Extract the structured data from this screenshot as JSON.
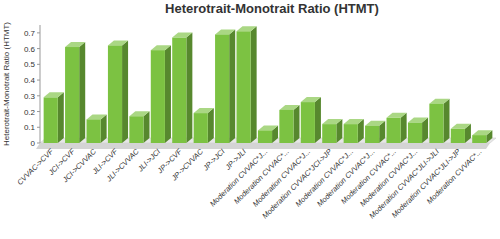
{
  "chart_data": {
    "type": "bar",
    "title": "Heterotrait-Monotrait Ratio (HTMT)",
    "y_label": "Heterotrait-Monotrait Ratio (HTMT)",
    "categories": [
      "CVVAC->CVF",
      "JCI->CVF",
      "JCI->CVVAC",
      "JLI->CVF",
      "JLI->CVVAC",
      "JLI->JCI",
      "JP->CVF",
      "JP->CVVAC",
      "JP->JCI",
      "JP->JLI",
      "Moderation CVVAC*J...",
      "Moderation CVVAC*...",
      "Moderation CVVAC*J...",
      "Moderation CVVAC*JCI->JP",
      "Moderation CVVAC*J...",
      "Moderation CVVAC*J...",
      "Moderation CVVAC*...",
      "Moderation CVVAC*J...",
      "Moderation CVVAC*JLI->JLI",
      "Moderation CVVAC*JLI->JP",
      "Moderation CVVAC*..."
    ],
    "values": [
      0.29,
      0.61,
      0.15,
      0.62,
      0.17,
      0.59,
      0.67,
      0.19,
      0.69,
      0.71,
      0.08,
      0.21,
      0.26,
      0.12,
      0.12,
      0.11,
      0.16,
      0.13,
      0.25,
      0.09,
      0.05
    ],
    "color": "#7cc242",
    "ylim": [
      0,
      0.75
    ],
    "yticks": [
      0,
      0.1,
      0.2,
      0.3,
      0.4,
      0.5,
      0.6,
      0.7
    ],
    "grid": false
  }
}
